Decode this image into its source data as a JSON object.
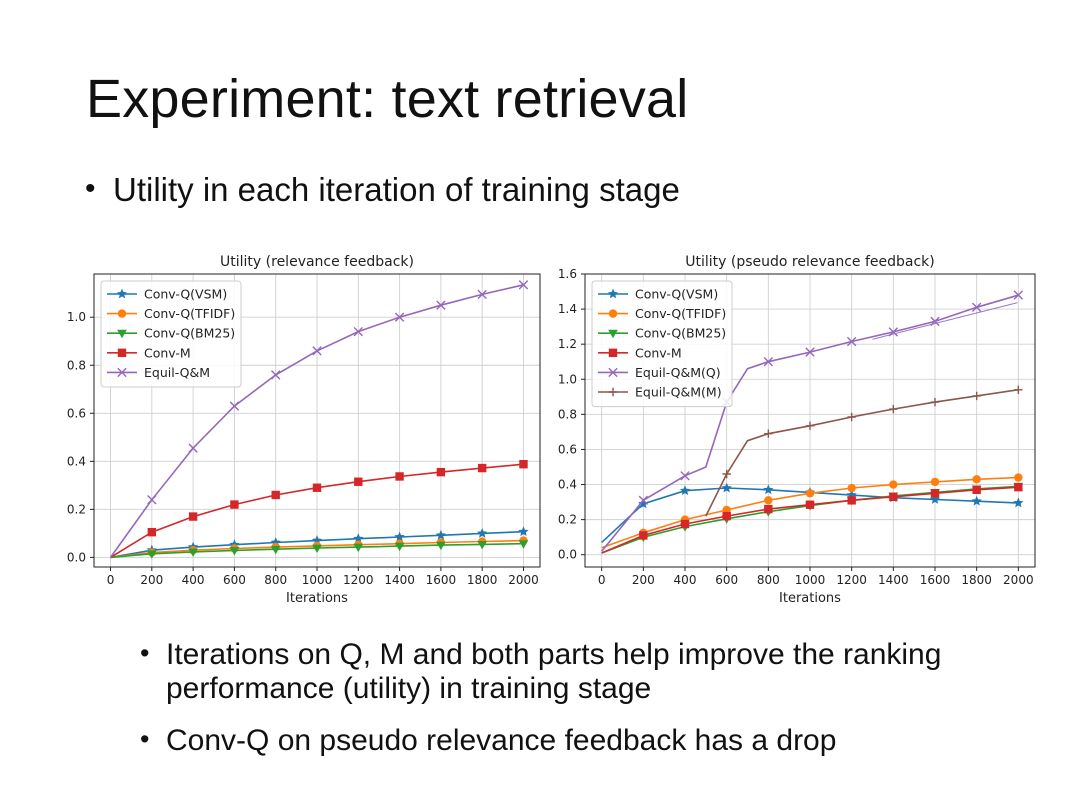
{
  "slide": {
    "title": "Experiment: text retrieval",
    "bullet_main": "Utility in each iteration of training stage",
    "bullets_sub": [
      "Iterations on Q, M and both parts help improve the ranking performance (utility) in training stage",
      "Conv-Q on pseudo relevance feedback has a drop"
    ]
  },
  "colors": {
    "Conv-Q(VSM)": "#1f77b4",
    "Conv-Q(TFIDF)": "#ff7f0e",
    "Conv-Q(BM25)": "#2ca02c",
    "Conv-M": "#d62728",
    "Equil-Q&M": "#9467bd",
    "Equil-Q&M(Q)": "#9467bd",
    "Equil-Q&M(M)": "#8c564b"
  },
  "chart_data": [
    {
      "type": "line",
      "title": "Utility (relevance feedback)",
      "xlabel": "Iterations",
      "ylabel": "",
      "xlim": [
        -80,
        2080
      ],
      "ylim": [
        -0.04,
        1.18
      ],
      "xticks": [
        0,
        200,
        400,
        600,
        800,
        1000,
        1200,
        1400,
        1600,
        1800,
        2000
      ],
      "yticks": [
        0.0,
        0.2,
        0.4,
        0.6,
        0.8,
        1.0
      ],
      "ytick_labels": [
        "0.0",
        "0.2",
        "0.4",
        "0.6",
        "0.8",
        "1.0"
      ],
      "grid": true,
      "legend": "top-left",
      "x": [
        0,
        200,
        400,
        600,
        800,
        1000,
        1200,
        1400,
        1600,
        1800,
        2000
      ],
      "series": [
        {
          "name": "Conv-Q(VSM)",
          "marker": "star",
          "values": [
            0.0,
            0.03,
            0.043,
            0.053,
            0.062,
            0.07,
            0.078,
            0.085,
            0.092,
            0.1,
            0.107
          ]
        },
        {
          "name": "Conv-Q(TFIDF)",
          "marker": "circle",
          "values": [
            0.0,
            0.02,
            0.03,
            0.037,
            0.043,
            0.048,
            0.053,
            0.057,
            0.062,
            0.066,
            0.07
          ]
        },
        {
          "name": "Conv-Q(BM25)",
          "marker": "triangle-down",
          "values": [
            0.0,
            0.015,
            0.023,
            0.029,
            0.034,
            0.039,
            0.043,
            0.047,
            0.051,
            0.054,
            0.057
          ]
        },
        {
          "name": "Conv-M",
          "marker": "square",
          "values": [
            0.0,
            0.105,
            0.17,
            0.22,
            0.26,
            0.29,
            0.315,
            0.337,
            0.355,
            0.372,
            0.388
          ]
        },
        {
          "name": "Equil-Q&M",
          "marker": "x",
          "values": [
            0.0,
            0.24,
            0.455,
            0.63,
            0.76,
            0.86,
            0.94,
            1.0,
            1.05,
            1.095,
            1.135
          ]
        }
      ]
    },
    {
      "type": "line",
      "title": "Utility (pseudo relevance feedback)",
      "xlabel": "Iterations",
      "ylabel": "",
      "xlim": [
        -80,
        2080
      ],
      "ylim": [
        -0.07,
        1.6
      ],
      "xticks": [
        0,
        200,
        400,
        600,
        800,
        1000,
        1200,
        1400,
        1600,
        1800,
        2000
      ],
      "yticks": [
        0.0,
        0.2,
        0.4,
        0.6,
        0.8,
        1.0,
        1.2,
        1.4,
        1.6
      ],
      "ytick_labels": [
        "0.0",
        "0.2",
        "0.4",
        "0.6",
        "0.8",
        "1.0",
        "1.2",
        "1.4",
        "1.6"
      ],
      "grid": true,
      "legend": "top-left",
      "x": [
        0,
        200,
        400,
        600,
        800,
        1000,
        1200,
        1400,
        1600,
        1800,
        2000
      ],
      "series": [
        {
          "name": "Conv-Q(VSM)",
          "marker": "star",
          "values": [
            0.07,
            0.29,
            0.365,
            0.38,
            0.37,
            0.355,
            0.34,
            0.325,
            0.315,
            0.305,
            0.295
          ]
        },
        {
          "name": "Conv-Q(TFIDF)",
          "marker": "circle",
          "values": [
            0.04,
            0.125,
            0.2,
            0.255,
            0.31,
            0.35,
            0.38,
            0.4,
            0.415,
            0.43,
            0.44
          ]
        },
        {
          "name": "Conv-Q(BM25)",
          "marker": "triangle-down",
          "values": [
            0.01,
            0.1,
            0.16,
            0.205,
            0.245,
            0.28,
            0.31,
            0.335,
            0.355,
            0.375,
            0.39
          ]
        },
        {
          "name": "Conv-M",
          "marker": "square",
          "values": [
            0.01,
            0.11,
            0.175,
            0.22,
            0.26,
            0.285,
            0.31,
            0.33,
            0.35,
            0.37,
            0.385
          ]
        },
        {
          "name": "Equil-Q&M(Q)",
          "marker": "x",
          "x": [
            0,
            200,
            400,
            500,
            600,
            700,
            800,
            1000,
            1200,
            1400,
            1600,
            1800,
            2000
          ],
          "values": [
            0.02,
            0.31,
            0.45,
            0.5,
            0.87,
            1.06,
            1.1,
            1.155,
            1.215,
            1.27,
            1.33,
            1.41,
            1.48
          ]
        },
        {
          "name": "Equil-Q&M(M)",
          "marker": "plus",
          "x": [
            500,
            600,
            700,
            800,
            1000,
            1200,
            1400,
            1600,
            1800,
            2000
          ],
          "values": [
            0.22,
            0.46,
            0.65,
            0.69,
            0.735,
            0.785,
            0.83,
            0.87,
            0.905,
            0.94
          ]
        }
      ]
    }
  ]
}
